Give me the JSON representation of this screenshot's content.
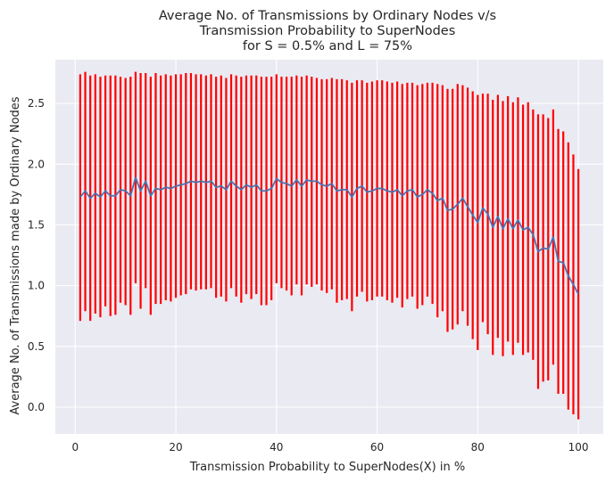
{
  "chart_data": {
    "type": "errorbar-line",
    "title_lines": [
      "Average No. of Transmissions by Ordinary Nodes v/s",
      "Transmission Probability to SuperNodes",
      "for S = 0.5% and L = 75%"
    ],
    "xlabel": "Transmission Probability to SuperNodes(X) in %",
    "ylabel": "Average No. of Transmissions made by Ordinary Nodes",
    "xlim": [
      -3.95,
      104.95
    ],
    "ylim": [
      -0.22,
      2.86
    ],
    "xticks": [
      0,
      20,
      40,
      60,
      80,
      100
    ],
    "yticks": [
      0.0,
      0.5,
      1.0,
      1.5,
      2.0,
      2.5
    ],
    "ytick_labels": [
      "0.0",
      "0.5",
      "1.0",
      "1.5",
      "2.0",
      "2.5"
    ],
    "grid": true,
    "x": [
      1,
      2,
      3,
      4,
      5,
      6,
      7,
      8,
      9,
      10,
      11,
      12,
      13,
      14,
      15,
      16,
      17,
      18,
      19,
      20,
      21,
      22,
      23,
      24,
      25,
      26,
      27,
      28,
      29,
      30,
      31,
      32,
      33,
      34,
      35,
      36,
      37,
      38,
      39,
      40,
      41,
      42,
      43,
      44,
      45,
      46,
      47,
      48,
      49,
      50,
      51,
      52,
      53,
      54,
      55,
      56,
      57,
      58,
      59,
      60,
      61,
      62,
      63,
      64,
      65,
      66,
      67,
      68,
      69,
      70,
      71,
      72,
      73,
      74,
      75,
      76,
      77,
      78,
      79,
      80,
      81,
      82,
      83,
      84,
      85,
      86,
      87,
      88,
      89,
      90,
      91,
      92,
      93,
      94,
      95,
      96,
      97,
      98,
      99,
      100
    ],
    "mean": [
      1.73,
      1.78,
      1.72,
      1.76,
      1.73,
      1.78,
      1.74,
      1.74,
      1.79,
      1.78,
      1.74,
      1.89,
      1.78,
      1.86,
      1.74,
      1.8,
      1.79,
      1.81,
      1.8,
      1.82,
      1.83,
      1.84,
      1.86,
      1.85,
      1.86,
      1.85,
      1.86,
      1.81,
      1.82,
      1.79,
      1.86,
      1.82,
      1.79,
      1.83,
      1.81,
      1.83,
      1.78,
      1.78,
      1.8,
      1.88,
      1.85,
      1.84,
      1.82,
      1.87,
      1.82,
      1.87,
      1.86,
      1.86,
      1.83,
      1.82,
      1.84,
      1.78,
      1.79,
      1.79,
      1.73,
      1.8,
      1.82,
      1.77,
      1.78,
      1.8,
      1.8,
      1.78,
      1.77,
      1.79,
      1.74,
      1.78,
      1.79,
      1.73,
      1.75,
      1.79,
      1.76,
      1.7,
      1.72,
      1.62,
      1.63,
      1.67,
      1.72,
      1.65,
      1.58,
      1.52,
      1.64,
      1.59,
      1.48,
      1.57,
      1.47,
      1.55,
      1.47,
      1.54,
      1.46,
      1.48,
      1.42,
      1.28,
      1.31,
      1.3,
      1.4,
      1.2,
      1.19,
      1.08,
      1.01,
      0.93
    ],
    "upper": [
      2.74,
      2.76,
      2.73,
      2.74,
      2.72,
      2.73,
      2.73,
      2.73,
      2.72,
      2.71,
      2.72,
      2.76,
      2.75,
      2.75,
      2.72,
      2.75,
      2.73,
      2.74,
      2.73,
      2.74,
      2.74,
      2.75,
      2.75,
      2.74,
      2.74,
      2.73,
      2.74,
      2.72,
      2.73,
      2.71,
      2.74,
      2.73,
      2.72,
      2.73,
      2.73,
      2.73,
      2.72,
      2.72,
      2.72,
      2.74,
      2.72,
      2.72,
      2.72,
      2.73,
      2.72,
      2.73,
      2.72,
      2.71,
      2.7,
      2.7,
      2.71,
      2.7,
      2.7,
      2.69,
      2.67,
      2.69,
      2.69,
      2.67,
      2.68,
      2.69,
      2.69,
      2.68,
      2.67,
      2.68,
      2.66,
      2.67,
      2.67,
      2.65,
      2.66,
      2.67,
      2.67,
      2.66,
      2.65,
      2.62,
      2.62,
      2.66,
      2.65,
      2.63,
      2.6,
      2.57,
      2.58,
      2.58,
      2.53,
      2.57,
      2.52,
      2.56,
      2.51,
      2.55,
      2.49,
      2.51,
      2.45,
      2.41,
      2.41,
      2.38,
      2.45,
      2.29,
      2.27,
      2.18,
      2.08,
      1.96
    ],
    "lower": [
      0.71,
      0.79,
      0.71,
      0.77,
      0.74,
      0.83,
      0.75,
      0.76,
      0.86,
      0.84,
      0.76,
      1.02,
      0.81,
      0.98,
      0.76,
      0.85,
      0.85,
      0.88,
      0.87,
      0.9,
      0.92,
      0.93,
      0.97,
      0.96,
      0.97,
      0.97,
      0.98,
      0.9,
      0.91,
      0.87,
      0.98,
      0.91,
      0.86,
      0.93,
      0.89,
      0.93,
      0.84,
      0.84,
      0.88,
      1.02,
      0.98,
      0.96,
      0.92,
      1.01,
      0.92,
      1.01,
      0.99,
      1.01,
      0.96,
      0.94,
      0.97,
      0.86,
      0.88,
      0.89,
      0.79,
      0.91,
      0.95,
      0.87,
      0.88,
      0.91,
      0.91,
      0.88,
      0.86,
      0.9,
      0.82,
      0.89,
      0.91,
      0.81,
      0.84,
      0.91,
      0.85,
      0.74,
      0.79,
      0.62,
      0.64,
      0.68,
      0.79,
      0.67,
      0.56,
      0.47,
      0.7,
      0.6,
      0.43,
      0.57,
      0.42,
      0.54,
      0.43,
      0.53,
      0.43,
      0.45,
      0.39,
      0.15,
      0.21,
      0.22,
      0.35,
      0.11,
      0.11,
      -0.02,
      -0.06,
      -0.1
    ],
    "colors": {
      "plot_bg": "#eaeaf2",
      "grid": "#ffffff",
      "errorbar": "#ff0000",
      "line": "#4c72b0",
      "text": "#262626"
    }
  }
}
